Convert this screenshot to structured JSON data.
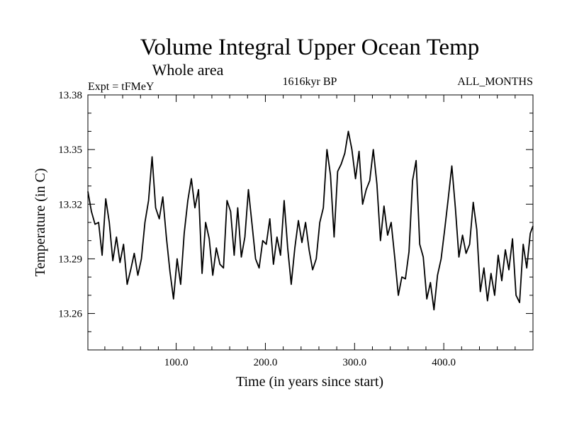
{
  "chart_data": {
    "type": "line",
    "title": "Volume Integral Upper Ocean Temp",
    "subtitle": "Whole area",
    "annotations": {
      "left": "Expt = tFMeY",
      "center": "1616kyr BP",
      "right": "ALL_MONTHS"
    },
    "xlabel": "Time (in years since start)",
    "ylabel": "Temperature (in C)",
    "xlim": [
      1,
      500
    ],
    "ylim": [
      13.24,
      13.38
    ],
    "x_ticks": [
      100,
      200,
      300,
      400
    ],
    "x_tick_labels": [
      "100.0",
      "200.0",
      "300.0",
      "400.0"
    ],
    "y_ticks": [
      13.26,
      13.29,
      13.32,
      13.35,
      13.38
    ],
    "y_tick_labels": [
      "13.26",
      "13.29",
      "13.32",
      "13.35",
      "13.38"
    ],
    "series": [
      {
        "name": "Volume Integral Upper Ocean Temp",
        "x": [
          1,
          5,
          9,
          13,
          17,
          21,
          25,
          29,
          33,
          37,
          41,
          45,
          49,
          53,
          57,
          61,
          65,
          69,
          73,
          77,
          81,
          85,
          89,
          93,
          97,
          101,
          105,
          109,
          113,
          117,
          121,
          125,
          129,
          133,
          137,
          141,
          145,
          149,
          153,
          157,
          161,
          165,
          169,
          173,
          177,
          181,
          185,
          189,
          193,
          197,
          201,
          205,
          209,
          213,
          217,
          221,
          225,
          229,
          233,
          237,
          241,
          245,
          249,
          253,
          257,
          261,
          265,
          269,
          273,
          277,
          281,
          285,
          289,
          293,
          297,
          301,
          305,
          309,
          313,
          317,
          321,
          325,
          329,
          333,
          337,
          341,
          345,
          349,
          353,
          357,
          361,
          365,
          369,
          373,
          377,
          381,
          385,
          389,
          393,
          397,
          401,
          405,
          409,
          413,
          417,
          421,
          425,
          429,
          433,
          437,
          441,
          445,
          449,
          453,
          457,
          461,
          465,
          469,
          473,
          477,
          481,
          485,
          489,
          493,
          497,
          500
        ],
        "values": [
          13.327,
          13.316,
          13.309,
          13.31,
          13.292,
          13.323,
          13.31,
          13.289,
          13.302,
          13.288,
          13.298,
          13.276,
          13.284,
          13.293,
          13.281,
          13.29,
          13.31,
          13.322,
          13.346,
          13.318,
          13.312,
          13.324,
          13.302,
          13.283,
          13.268,
          13.29,
          13.276,
          13.304,
          13.322,
          13.334,
          13.318,
          13.328,
          13.282,
          13.31,
          13.301,
          13.281,
          13.296,
          13.287,
          13.285,
          13.322,
          13.316,
          13.292,
          13.318,
          13.291,
          13.302,
          13.328,
          13.309,
          13.29,
          13.285,
          13.3,
          13.298,
          13.312,
          13.287,
          13.302,
          13.292,
          13.322,
          13.296,
          13.276,
          13.296,
          13.311,
          13.299,
          13.31,
          13.295,
          13.284,
          13.29,
          13.31,
          13.318,
          13.35,
          13.336,
          13.302,
          13.338,
          13.342,
          13.348,
          13.36,
          13.35,
          13.334,
          13.349,
          13.32,
          13.328,
          13.333,
          13.35,
          13.331,
          13.3,
          13.319,
          13.303,
          13.31,
          13.291,
          13.27,
          13.28,
          13.279,
          13.294,
          13.333,
          13.344,
          13.298,
          13.291,
          13.268,
          13.277,
          13.262,
          13.281,
          13.29,
          13.306,
          13.323,
          13.341,
          13.318,
          13.291,
          13.303,
          13.293,
          13.298,
          13.321,
          13.306,
          13.272,
          13.285,
          13.267,
          13.282,
          13.27,
          13.292,
          13.278,
          13.295,
          13.284,
          13.301,
          13.27,
          13.266,
          13.298,
          13.285,
          13.304,
          13.308
        ]
      }
    ]
  }
}
